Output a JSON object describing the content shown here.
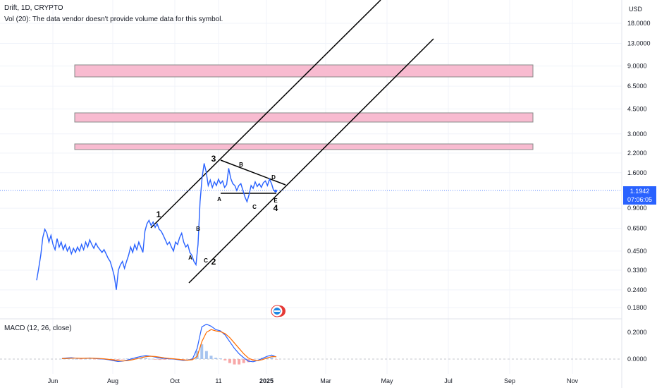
{
  "header": {
    "symbol_line": "Drift, 1D, CRYPTO",
    "volume_note": "Vol (20): The data vendor doesn't provide volume data for this symbol."
  },
  "currency": "USD",
  "last_price": {
    "value": "1.1942",
    "countdown": "07:06:05",
    "color": "#2962ff"
  },
  "macd_label": "MACD (12, 26, close)",
  "colors": {
    "price_line": "#2962ff",
    "zone_fill": "#f8bbd0",
    "zone_stroke": "#888888",
    "channel": "#000000",
    "macd_line": "#2962ff",
    "signal_line": "#ff6d00",
    "hist_pos": "#a7c4ef",
    "hist_neg": "#f7a7a7"
  },
  "chart_data": {
    "type": "line",
    "y_scale": "log",
    "y_ticks": [
      "18.0000",
      "13.0000",
      "9.0000",
      "6.5000",
      "4.5000",
      "3.0000",
      "2.2000",
      "1.6000",
      "0.9000",
      "0.6500",
      "0.4500",
      "0.3300",
      "0.2400",
      "0.1800"
    ],
    "x_ticks": [
      "Jun",
      "Aug",
      "Oct",
      "11",
      "2025",
      "Mar",
      "May",
      "Jul",
      "Sep",
      "Nov"
    ],
    "series": [
      {
        "values": [
          0.28,
          0.34,
          0.42,
          0.56,
          0.64,
          0.6,
          0.52,
          0.58,
          0.5,
          0.46,
          0.55,
          0.48,
          0.52,
          0.46,
          0.5,
          0.45,
          0.48,
          0.43,
          0.47,
          0.44,
          0.48,
          0.45,
          0.5,
          0.46,
          0.52,
          0.48,
          0.54,
          0.5,
          0.47,
          0.51,
          0.48,
          0.46,
          0.44,
          0.46,
          0.43,
          0.4,
          0.38,
          0.34,
          0.3,
          0.24,
          0.33,
          0.36,
          0.38,
          0.34,
          0.38,
          0.42,
          0.48,
          0.44,
          0.5,
          0.46,
          0.52,
          0.48,
          0.44,
          0.62,
          0.7,
          0.74,
          0.68,
          0.72,
          0.66,
          0.7,
          0.64,
          0.62,
          0.58,
          0.54,
          0.5,
          0.52,
          0.48,
          0.45,
          0.52,
          0.5,
          0.56,
          0.6,
          0.52,
          0.48,
          0.5,
          0.44,
          0.42,
          0.38,
          0.36,
          0.5,
          1.0,
          1.48,
          1.86,
          1.62,
          1.3,
          1.42,
          1.26,
          1.38,
          1.3,
          1.44,
          1.34,
          1.4,
          1.26,
          1.32,
          1.72,
          1.46,
          1.34,
          1.3,
          1.2,
          1.3,
          1.34,
          1.2,
          1.08,
          1.0,
          1.12,
          1.3,
          1.24,
          1.38,
          1.28,
          1.34,
          1.26,
          1.36,
          1.4,
          1.3,
          1.44,
          1.34,
          1.2,
          1.19
        ]
      }
    ],
    "annotations": {
      "wave_labels": [
        "1",
        "2",
        "3",
        "4"
      ],
      "sub_labels": [
        "A",
        "B",
        "C",
        "A",
        "B",
        "C",
        "D",
        "E"
      ]
    },
    "macd": {
      "macd": [
        0.005,
        0.008,
        0.01,
        0.007,
        0.004,
        0.006,
        0.008,
        0.005,
        0.002,
        0.0,
        -0.005,
        -0.012,
        -0.018,
        -0.015,
        -0.008,
        0.002,
        0.012,
        0.02,
        0.026,
        0.022,
        0.015,
        0.008,
        0.004,
        0.002,
        0.0,
        -0.005,
        -0.01,
        -0.008,
        0.0,
        0.08,
        0.24,
        0.26,
        0.245,
        0.22,
        0.21,
        0.18,
        0.13,
        0.08,
        0.04,
        0.01,
        -0.015,
        -0.02,
        -0.01,
        0.005,
        0.02,
        0.03,
        0.015
      ],
      "signal": [
        0.003,
        0.005,
        0.007,
        0.007,
        0.006,
        0.006,
        0.007,
        0.006,
        0.004,
        0.002,
        -0.002,
        -0.006,
        -0.012,
        -0.014,
        -0.012,
        -0.006,
        0.002,
        0.01,
        0.018,
        0.021,
        0.019,
        0.014,
        0.009,
        0.005,
        0.002,
        -0.002,
        -0.006,
        -0.008,
        -0.005,
        0.02,
        0.13,
        0.2,
        0.22,
        0.21,
        0.205,
        0.19,
        0.16,
        0.12,
        0.08,
        0.04,
        0.008,
        -0.008,
        -0.012,
        -0.004,
        0.008,
        0.018,
        0.018
      ],
      "y_ticks": [
        "0.2000",
        "0.0000"
      ]
    }
  }
}
